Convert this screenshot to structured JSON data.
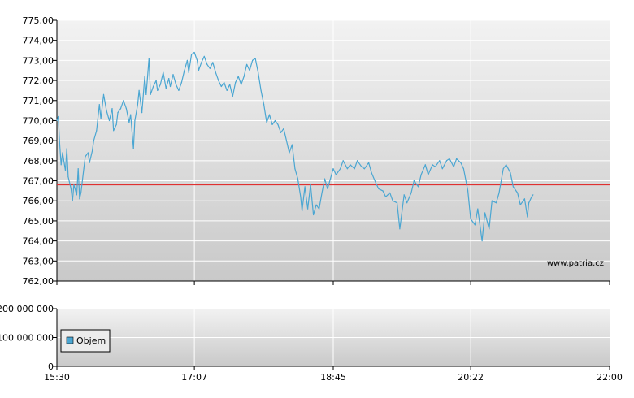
{
  "chart_data": [
    {
      "type": "line",
      "title": "",
      "xlabel": "",
      "ylabel": "",
      "ylim": [
        762,
        775
      ],
      "y_ticks": [
        "762,00",
        "763,00",
        "764,00",
        "765,00",
        "766,00",
        "767,00",
        "768,00",
        "769,00",
        "770,00",
        "771,00",
        "772,00",
        "773,00",
        "774,00",
        "775,00"
      ],
      "x_ticks": [
        "15:30",
        "17:07",
        "18:45",
        "20:22",
        "22:00"
      ],
      "xlim": [
        "15:30",
        "22:00"
      ],
      "grid": true,
      "watermark": "www.patria.cz",
      "colors": {
        "series": "#4aa6d2",
        "reference_line": "#e03030"
      },
      "reference_line": 766.8,
      "series": [
        {
          "values": [
            [
              "15:30",
              770.0
            ],
            [
              "15:31",
              770.2
            ],
            [
              "15:32",
              768.8
            ],
            [
              "15:33",
              767.8
            ],
            [
              "15:34",
              768.4
            ],
            [
              "15:36",
              767.5
            ],
            [
              "15:37",
              768.6
            ],
            [
              "15:38",
              767.2
            ],
            [
              "15:40",
              766.6
            ],
            [
              "15:41",
              766.0
            ],
            [
              "15:42",
              766.8
            ],
            [
              "15:44",
              766.3
            ],
            [
              "15:45",
              767.6
            ],
            [
              "15:46",
              766.1
            ],
            [
              "15:47",
              766.4
            ],
            [
              "15:49",
              767.6
            ],
            [
              "15:50",
              768.2
            ],
            [
              "15:52",
              768.4
            ],
            [
              "15:53",
              767.9
            ],
            [
              "15:55",
              768.5
            ],
            [
              "15:56",
              769.0
            ],
            [
              "15:58",
              769.5
            ],
            [
              "16:00",
              770.8
            ],
            [
              "16:01",
              770.1
            ],
            [
              "16:03",
              771.3
            ],
            [
              "16:05",
              770.5
            ],
            [
              "16:07",
              770.0
            ],
            [
              "16:09",
              770.6
            ],
            [
              "16:10",
              769.5
            ],
            [
              "16:12",
              769.8
            ],
            [
              "16:13",
              770.4
            ],
            [
              "16:15",
              770.6
            ],
            [
              "16:17",
              771.0
            ],
            [
              "16:19",
              770.6
            ],
            [
              "16:21",
              769.9
            ],
            [
              "16:22",
              770.3
            ],
            [
              "16:24",
              768.6
            ],
            [
              "16:25",
              770.0
            ],
            [
              "16:27",
              770.8
            ],
            [
              "16:28",
              771.5
            ],
            [
              "16:30",
              770.4
            ],
            [
              "16:32",
              772.2
            ],
            [
              "16:33",
              771.3
            ],
            [
              "16:35",
              773.1
            ],
            [
              "16:36",
              771.3
            ],
            [
              "16:38",
              771.7
            ],
            [
              "16:40",
              772.0
            ],
            [
              "16:41",
              771.5
            ],
            [
              "16:43",
              771.8
            ],
            [
              "16:45",
              772.4
            ],
            [
              "16:47",
              771.6
            ],
            [
              "16:49",
              772.1
            ],
            [
              "16:50",
              771.7
            ],
            [
              "16:52",
              772.3
            ],
            [
              "16:54",
              771.8
            ],
            [
              "16:56",
              771.5
            ],
            [
              "16:58",
              771.9
            ],
            [
              "17:00",
              772.5
            ],
            [
              "17:02",
              773.0
            ],
            [
              "17:03",
              772.4
            ],
            [
              "17:05",
              773.3
            ],
            [
              "17:07",
              773.4
            ],
            [
              "17:09",
              773.0
            ],
            [
              "17:10",
              772.5
            ],
            [
              "17:12",
              772.9
            ],
            [
              "17:14",
              773.2
            ],
            [
              "17:16",
              772.8
            ],
            [
              "17:18",
              772.6
            ],
            [
              "17:20",
              772.9
            ],
            [
              "17:22",
              772.4
            ],
            [
              "17:24",
              772.0
            ],
            [
              "17:26",
              771.7
            ],
            [
              "17:28",
              771.9
            ],
            [
              "17:30",
              771.5
            ],
            [
              "17:32",
              771.8
            ],
            [
              "17:34",
              771.2
            ],
            [
              "17:36",
              771.9
            ],
            [
              "17:38",
              772.2
            ],
            [
              "17:40",
              771.8
            ],
            [
              "17:42",
              772.2
            ],
            [
              "17:44",
              772.8
            ],
            [
              "17:46",
              772.5
            ],
            [
              "17:48",
              773.0
            ],
            [
              "17:50",
              773.1
            ],
            [
              "17:52",
              772.4
            ],
            [
              "17:54",
              771.5
            ],
            [
              "17:56",
              770.8
            ],
            [
              "17:58",
              769.9
            ],
            [
              "18:00",
              770.3
            ],
            [
              "18:02",
              769.8
            ],
            [
              "18:04",
              770.0
            ],
            [
              "18:06",
              769.8
            ],
            [
              "18:08",
              769.4
            ],
            [
              "18:10",
              769.6
            ],
            [
              "18:12",
              769.0
            ],
            [
              "18:14",
              768.4
            ],
            [
              "18:16",
              768.8
            ],
            [
              "18:18",
              767.6
            ],
            [
              "18:20",
              767.1
            ],
            [
              "18:22",
              766.2
            ],
            [
              "18:23",
              765.5
            ],
            [
              "18:25",
              766.7
            ],
            [
              "18:27",
              765.6
            ],
            [
              "18:29",
              766.8
            ],
            [
              "18:31",
              765.3
            ],
            [
              "18:33",
              765.8
            ],
            [
              "18:35",
              765.6
            ],
            [
              "18:37",
              766.4
            ],
            [
              "18:39",
              767.1
            ],
            [
              "18:41",
              766.6
            ],
            [
              "18:43",
              767.1
            ],
            [
              "18:45",
              767.6
            ],
            [
              "18:47",
              767.3
            ],
            [
              "18:50",
              767.6
            ],
            [
              "18:52",
              768.0
            ],
            [
              "18:55",
              767.6
            ],
            [
              "18:57",
              767.8
            ],
            [
              "19:00",
              767.6
            ],
            [
              "19:02",
              768.0
            ],
            [
              "19:05",
              767.7
            ],
            [
              "19:07",
              767.6
            ],
            [
              "19:10",
              767.9
            ],
            [
              "19:12",
              767.4
            ],
            [
              "19:15",
              766.9
            ],
            [
              "19:17",
              766.6
            ],
            [
              "19:20",
              766.5
            ],
            [
              "19:22",
              766.2
            ],
            [
              "19:25",
              766.4
            ],
            [
              "19:27",
              766.0
            ],
            [
              "19:30",
              765.9
            ],
            [
              "19:32",
              764.6
            ],
            [
              "19:35",
              766.3
            ],
            [
              "19:37",
              765.9
            ],
            [
              "19:40",
              766.4
            ],
            [
              "19:42",
              767.0
            ],
            [
              "19:45",
              766.7
            ],
            [
              "19:47",
              767.3
            ],
            [
              "19:50",
              767.8
            ],
            [
              "19:52",
              767.3
            ],
            [
              "19:55",
              767.8
            ],
            [
              "19:57",
              767.7
            ],
            [
              "20:00",
              768.0
            ],
            [
              "20:02",
              767.6
            ],
            [
              "20:05",
              768.0
            ],
            [
              "20:07",
              768.1
            ],
            [
              "20:10",
              767.7
            ],
            [
              "20:12",
              768.1
            ],
            [
              "20:15",
              767.9
            ],
            [
              "20:17",
              767.6
            ],
            [
              "20:20",
              766.5
            ],
            [
              "20:22",
              765.1
            ],
            [
              "20:25",
              764.8
            ],
            [
              "20:27",
              765.6
            ],
            [
              "20:30",
              764.0
            ],
            [
              "20:32",
              765.4
            ],
            [
              "20:35",
              764.6
            ],
            [
              "20:37",
              766.0
            ],
            [
              "20:40",
              765.9
            ],
            [
              "20:42",
              766.4
            ],
            [
              "20:45",
              767.6
            ],
            [
              "20:47",
              767.8
            ],
            [
              "20:50",
              767.4
            ],
            [
              "20:52",
              766.7
            ],
            [
              "20:55",
              766.4
            ],
            [
              "20:57",
              765.8
            ],
            [
              "21:00",
              766.1
            ],
            [
              "21:02",
              765.2
            ],
            [
              "21:03",
              765.9
            ],
            [
              "21:05",
              766.2
            ],
            [
              "21:06",
              766.3
            ]
          ]
        }
      ]
    },
    {
      "type": "bar",
      "title": "",
      "xlabel": "",
      "ylabel": "",
      "y_ticks": [
        "0",
        "100 000 000",
        "200 000 000"
      ],
      "x_ticks": [
        "15:30",
        "17:07",
        "18:45",
        "20:22",
        "22:00"
      ],
      "ylim": [
        0,
        200000000
      ],
      "grid": true,
      "legend": {
        "position": "bottom-left",
        "entries": [
          "Objem"
        ]
      },
      "colors": {
        "legend_swatch": "#4aa6d2"
      },
      "series": [
        {
          "name": "Objem",
          "values": []
        }
      ]
    }
  ]
}
